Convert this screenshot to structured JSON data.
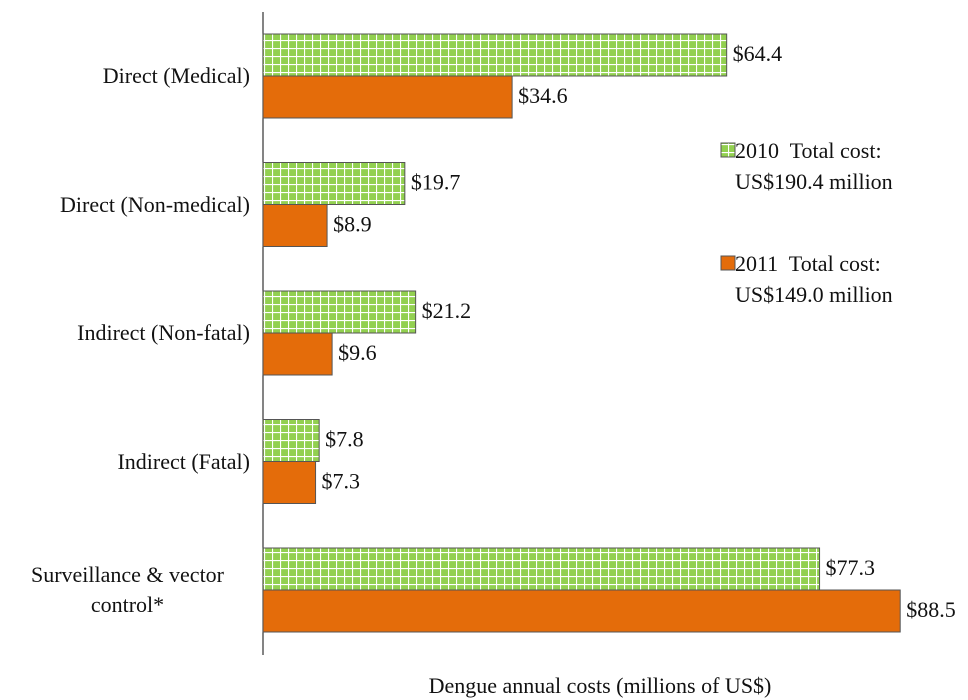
{
  "chart_data": {
    "type": "bar",
    "orientation": "horizontal",
    "x_label": "Dengue annual costs (millions of US$)",
    "categories": [
      "Direct (Medical)",
      "Direct (Non-medical)",
      "Indirect (Non-fatal)",
      "Indirect (Fatal)",
      "Surveillance & vector control*"
    ],
    "xlim": [
      0,
      90
    ],
    "series": [
      {
        "name": "2010",
        "note": "Total cost: US$190.4 million",
        "color": "#92d050",
        "pattern": "grid",
        "values": [
          64.4,
          19.7,
          21.2,
          7.8,
          77.3
        ],
        "value_labels": [
          "$64.4",
          "$19.7",
          "$21.2",
          "$7.8",
          "$77.3"
        ]
      },
      {
        "name": "2011",
        "note": "Total cost: US$149.0 million",
        "color": "#e46c0a",
        "pattern": "solid",
        "values": [
          34.6,
          8.9,
          9.6,
          7.3,
          88.5
        ],
        "value_labels": [
          "$34.6",
          "$8.9",
          "$9.6",
          "$7.3",
          "$88.5"
        ]
      }
    ]
  }
}
